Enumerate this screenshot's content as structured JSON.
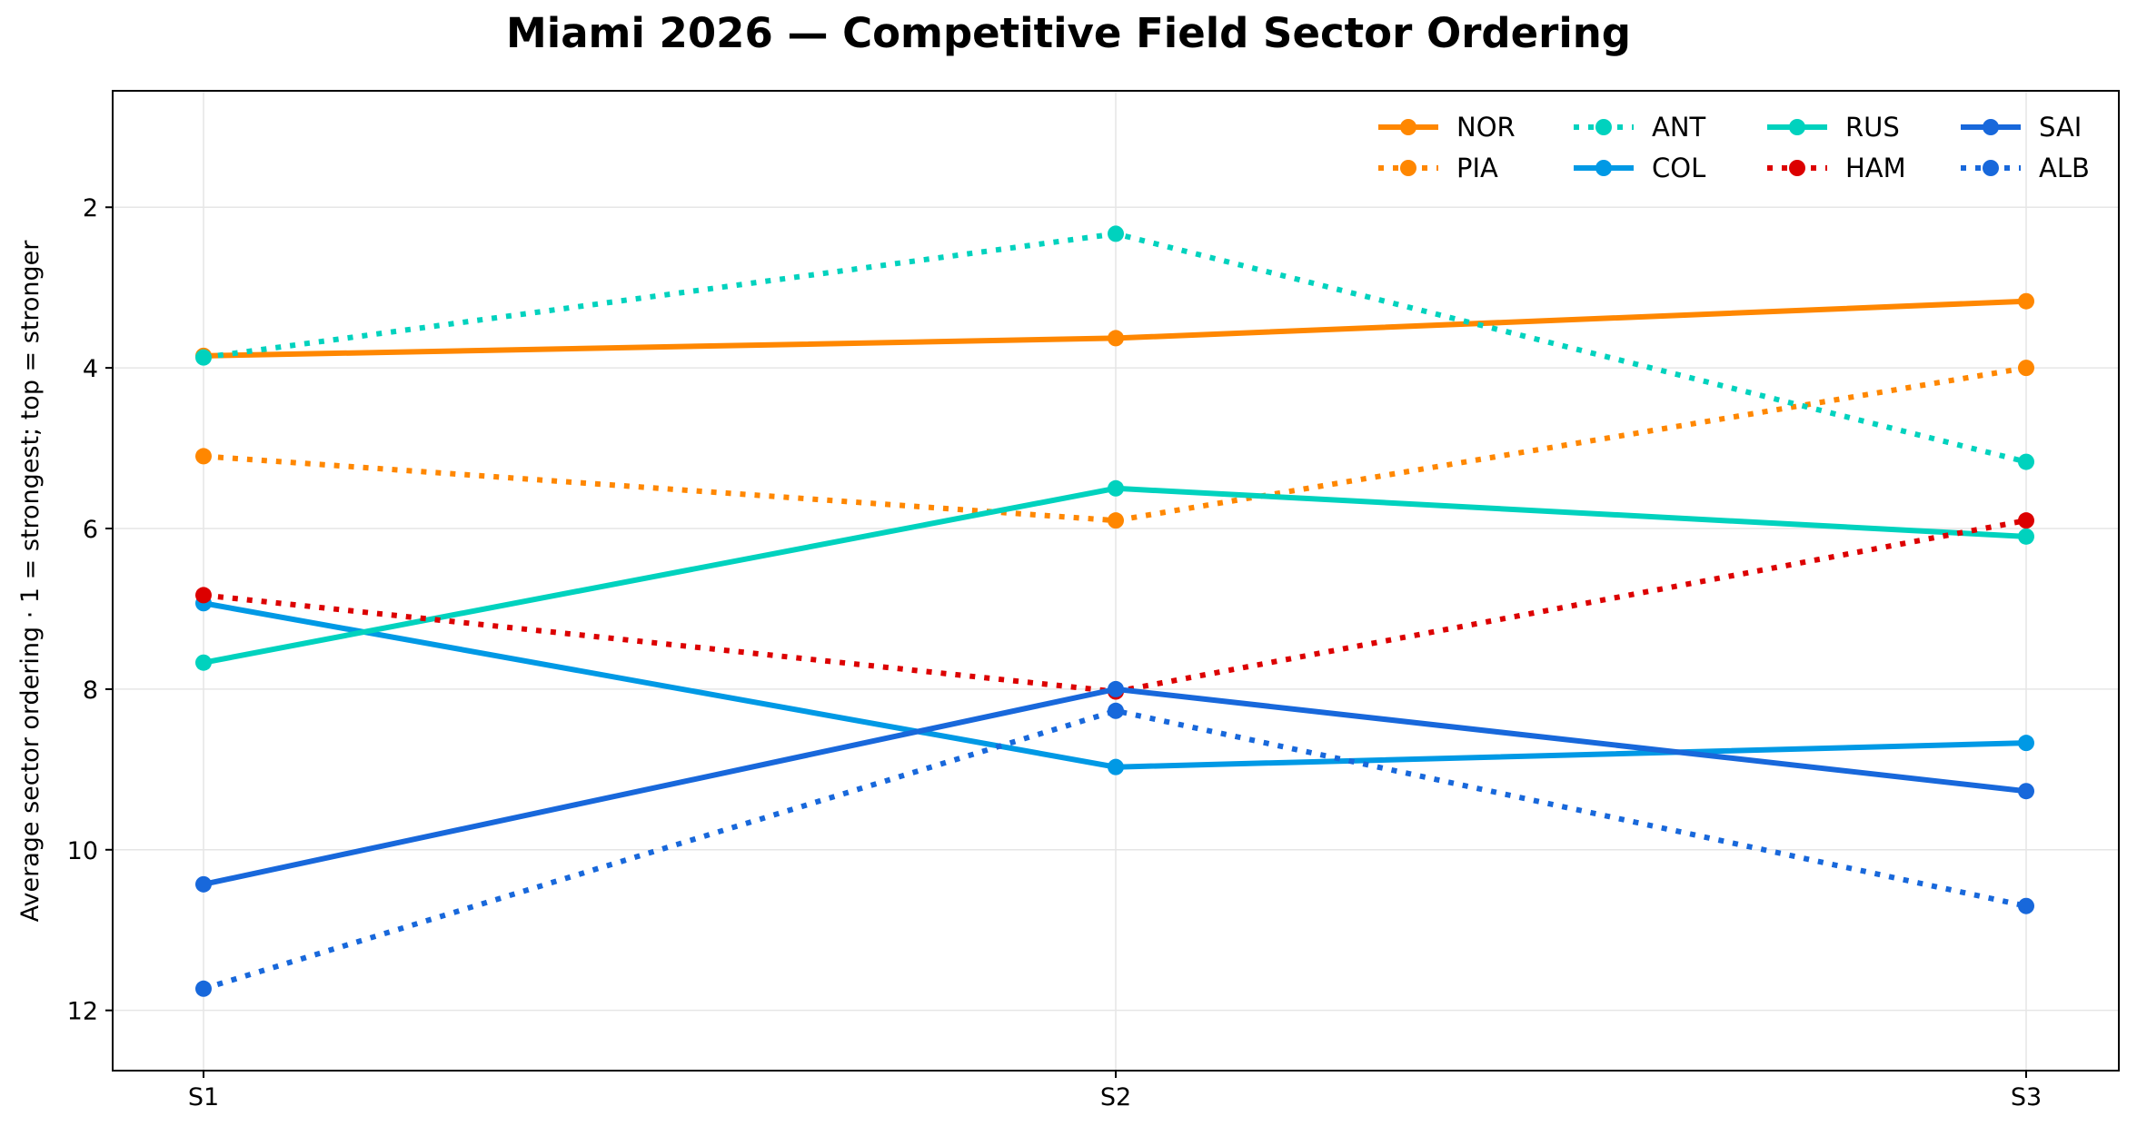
{
  "chart_data": {
    "type": "line",
    "title": "Miami 2026 — Competitive Field Sector Ordering",
    "xlabel": "",
    "ylabel": "Average sector ordering · 1 = strongest; top = stronger",
    "categories": [
      "S1",
      "S2",
      "S3"
    ],
    "y_ticks": [
      "2",
      "4",
      "6",
      "8",
      "10",
      "12"
    ],
    "ylim": [
      12.75,
      0.55
    ],
    "y_inverted": true,
    "grid": true,
    "legend": "top-right",
    "legend_columns": 4,
    "series": [
      {
        "name": "NOR",
        "values": [
          3.85,
          3.63,
          3.17
        ],
        "color": "#ff8700",
        "style": "solid"
      },
      {
        "name": "PIA",
        "values": [
          5.1,
          5.9,
          4.0
        ],
        "color": "#ff8700",
        "style": "dotted"
      },
      {
        "name": "ANT",
        "values": [
          3.87,
          2.33,
          5.17
        ],
        "color": "#00d2be",
        "style": "dotted"
      },
      {
        "name": "COL",
        "values": [
          6.93,
          8.97,
          8.67
        ],
        "color": "#0099e5",
        "style": "solid"
      },
      {
        "name": "RUS",
        "values": [
          7.67,
          5.5,
          6.1
        ],
        "color": "#00d2be",
        "style": "solid"
      },
      {
        "name": "HAM",
        "values": [
          6.83,
          8.03,
          5.9
        ],
        "color": "#dc0000",
        "style": "dotted"
      },
      {
        "name": "SAI",
        "values": [
          10.43,
          8.0,
          9.27
        ],
        "color": "#1868db",
        "style": "solid"
      },
      {
        "name": "ALB",
        "values": [
          11.73,
          8.27,
          10.7
        ],
        "color": "#1868db",
        "style": "dotted"
      }
    ]
  }
}
